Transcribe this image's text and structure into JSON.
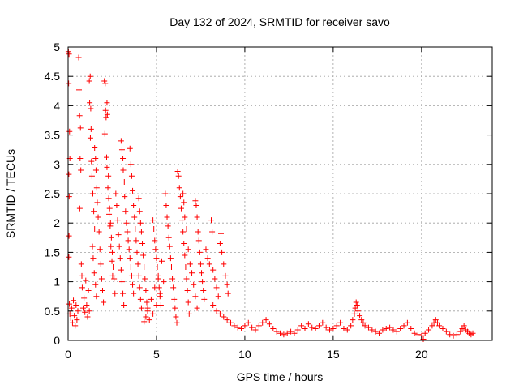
{
  "colors": {
    "series": "#ff0000",
    "axis": "#000000",
    "grid": "#a0a0a0",
    "background": "#ffffff"
  },
  "chart_data": {
    "type": "scatter",
    "title": "Day 132 of 2024, SRMTID for receiver savo",
    "xlabel": "GPS time / hours",
    "ylabel": "SRMTID / TECUs",
    "xlim": [
      0,
      24
    ],
    "ylim": [
      0,
      5
    ],
    "xticks": [
      0,
      5,
      10,
      15,
      20
    ],
    "yticks": [
      0,
      0.5,
      1,
      1.5,
      2,
      2.5,
      3,
      3.5,
      4,
      4.5,
      5
    ],
    "grid": true,
    "marker": "plus",
    "series": [
      {
        "name": "SRMTID",
        "points": [
          [
            0.02,
            4.92
          ],
          [
            0.05,
            4.88
          ],
          [
            0.03,
            4.38
          ],
          [
            0.08,
            3.56
          ],
          [
            0.04,
            2.83
          ],
          [
            0.1,
            3.1
          ],
          [
            0.06,
            2.45
          ],
          [
            0.05,
            1.78
          ],
          [
            0.04,
            1.42
          ],
          [
            0.07,
            0.62
          ],
          [
            0.1,
            0.45
          ],
          [
            0.15,
            0.38
          ],
          [
            0.2,
            0.55
          ],
          [
            0.25,
            0.3
          ],
          [
            0.3,
            0.68
          ],
          [
            0.35,
            0.42
          ],
          [
            0.4,
            0.25
          ],
          [
            0.45,
            0.6
          ],
          [
            0.5,
            0.35
          ],
          [
            0.55,
            0.5
          ],
          [
            0.6,
            4.82
          ],
          [
            0.62,
            4.27
          ],
          [
            0.65,
            3.83
          ],
          [
            0.7,
            3.62
          ],
          [
            0.68,
            3.1
          ],
          [
            0.72,
            2.9
          ],
          [
            0.66,
            2.25
          ],
          [
            0.75,
            1.3
          ],
          [
            0.78,
            1.1
          ],
          [
            0.8,
            0.9
          ],
          [
            0.85,
            0.55
          ],
          [
            0.9,
            0.72
          ],
          [
            0.95,
            0.48
          ],
          [
            1.0,
            1.02
          ],
          [
            1.05,
            0.6
          ],
          [
            1.1,
            0.4
          ],
          [
            1.15,
            0.85
          ],
          [
            1.2,
            0.5
          ],
          [
            1.2,
            4.42
          ],
          [
            1.25,
            4.5
          ],
          [
            1.22,
            4.05
          ],
          [
            1.28,
            3.95
          ],
          [
            1.3,
            3.6
          ],
          [
            1.26,
            3.45
          ],
          [
            1.32,
            3.05
          ],
          [
            1.35,
            2.8
          ],
          [
            1.4,
            2.5
          ],
          [
            1.45,
            2.2
          ],
          [
            1.5,
            1.9
          ],
          [
            1.38,
            1.6
          ],
          [
            1.42,
            1.4
          ],
          [
            1.48,
            1.15
          ],
          [
            1.55,
            0.95
          ],
          [
            1.6,
            0.75
          ],
          [
            1.5,
            3.28
          ],
          [
            1.55,
            3.1
          ],
          [
            1.58,
            2.9
          ],
          [
            1.62,
            2.6
          ],
          [
            1.65,
            2.35
          ],
          [
            1.7,
            2.1
          ],
          [
            1.75,
            1.85
          ],
          [
            1.8,
            1.55
          ],
          [
            1.85,
            1.3
          ],
          [
            1.9,
            1.05
          ],
          [
            1.95,
            0.85
          ],
          [
            2.0,
            0.65
          ],
          [
            2.05,
            4.42
          ],
          [
            2.1,
            4.38
          ],
          [
            2.12,
            3.92
          ],
          [
            2.15,
            3.8
          ],
          [
            2.08,
            3.52
          ],
          [
            2.18,
            3.12
          ],
          [
            2.2,
            2.95
          ],
          [
            2.25,
            2.6
          ],
          [
            2.3,
            2.42
          ],
          [
            2.35,
            2.25
          ],
          [
            2.4,
            2.0
          ],
          [
            2.45,
            1.75
          ],
          [
            2.5,
            1.5
          ],
          [
            2.55,
            1.25
          ],
          [
            2.6,
            1.05
          ],
          [
            2.65,
            0.8
          ],
          [
            2.2,
            4.05
          ],
          [
            2.22,
            3.85
          ],
          [
            2.28,
            2.8
          ],
          [
            2.32,
            2.15
          ],
          [
            2.38,
            1.95
          ],
          [
            2.42,
            1.6
          ],
          [
            2.48,
            1.35
          ],
          [
            2.52,
            1.1
          ],
          [
            2.7,
            2.5
          ],
          [
            2.75,
            2.3
          ],
          [
            2.8,
            2.05
          ],
          [
            2.85,
            1.8
          ],
          [
            2.9,
            1.6
          ],
          [
            2.95,
            1.4
          ],
          [
            3.0,
            1.2
          ],
          [
            3.05,
            1.0
          ],
          [
            3.1,
            0.8
          ],
          [
            3.15,
            0.6
          ],
          [
            3.0,
            3.4
          ],
          [
            3.05,
            3.25
          ],
          [
            3.1,
            3.1
          ],
          [
            3.12,
            2.9
          ],
          [
            3.18,
            2.7
          ],
          [
            3.2,
            2.45
          ],
          [
            3.25,
            2.2
          ],
          [
            3.3,
            2.0
          ],
          [
            3.35,
            1.85
          ],
          [
            3.4,
            1.7
          ],
          [
            3.45,
            1.55
          ],
          [
            3.5,
            1.4
          ],
          [
            3.55,
            1.25
          ],
          [
            3.6,
            1.1
          ],
          [
            3.65,
            0.95
          ],
          [
            3.7,
            0.8
          ],
          [
            3.5,
            3.27
          ],
          [
            3.55,
            3.0
          ],
          [
            3.6,
            2.8
          ],
          [
            3.65,
            2.55
          ],
          [
            3.7,
            2.3
          ],
          [
            3.75,
            2.1
          ],
          [
            3.8,
            1.9
          ],
          [
            3.85,
            1.7
          ],
          [
            3.9,
            1.5
          ],
          [
            3.95,
            1.3
          ],
          [
            4.0,
            1.1
          ],
          [
            4.05,
            0.9
          ],
          [
            4.1,
            0.7
          ],
          [
            4.15,
            0.55
          ],
          [
            4.0,
            2.42
          ],
          [
            4.05,
            2.2
          ],
          [
            4.1,
            2.0
          ],
          [
            4.15,
            1.85
          ],
          [
            4.2,
            1.65
          ],
          [
            4.25,
            1.45
          ],
          [
            4.3,
            1.25
          ],
          [
            4.35,
            1.05
          ],
          [
            4.4,
            0.85
          ],
          [
            4.45,
            0.65
          ],
          [
            4.5,
            0.5
          ],
          [
            4.3,
            0.32
          ],
          [
            4.4,
            0.4
          ],
          [
            4.5,
            0.55
          ],
          [
            4.6,
            0.35
          ],
          [
            4.7,
            0.7
          ],
          [
            4.8,
            0.45
          ],
          [
            4.9,
            0.9
          ],
          [
            5.0,
            0.6
          ],
          [
            5.1,
            1.1
          ],
          [
            5.2,
            0.8
          ],
          [
            5.3,
            1.35
          ],
          [
            5.4,
            1.0
          ],
          [
            4.8,
            2.05
          ],
          [
            4.85,
            1.9
          ],
          [
            4.9,
            1.7
          ],
          [
            4.95,
            1.55
          ],
          [
            5.0,
            1.4
          ],
          [
            5.05,
            1.25
          ],
          [
            5.1,
            1.05
          ],
          [
            5.15,
            0.9
          ],
          [
            5.2,
            0.75
          ],
          [
            5.25,
            0.6
          ],
          [
            5.5,
            2.5
          ],
          [
            5.55,
            2.3
          ],
          [
            5.6,
            2.1
          ],
          [
            5.65,
            1.95
          ],
          [
            5.7,
            1.75
          ],
          [
            5.75,
            1.6
          ],
          [
            5.8,
            1.4
          ],
          [
            5.85,
            1.25
          ],
          [
            5.9,
            1.05
          ],
          [
            5.95,
            0.9
          ],
          [
            6.0,
            0.7
          ],
          [
            6.05,
            0.55
          ],
          [
            6.1,
            0.4
          ],
          [
            6.15,
            0.3
          ],
          [
            6.2,
            2.88
          ],
          [
            6.25,
            2.8
          ],
          [
            6.3,
            2.6
          ],
          [
            6.35,
            2.45
          ],
          [
            6.4,
            2.25
          ],
          [
            6.45,
            2.05
          ],
          [
            6.5,
            1.85
          ],
          [
            6.55,
            1.65
          ],
          [
            6.6,
            1.45
          ],
          [
            6.65,
            1.25
          ],
          [
            6.7,
            1.05
          ],
          [
            6.75,
            0.85
          ],
          [
            6.8,
            0.65
          ],
          [
            6.85,
            0.45
          ],
          [
            6.5,
            2.5
          ],
          [
            6.55,
            2.35
          ],
          [
            6.6,
            2.1
          ],
          [
            6.7,
            1.9
          ],
          [
            6.8,
            1.55
          ],
          [
            6.9,
            1.3
          ],
          [
            7.0,
            1.15
          ],
          [
            7.1,
            0.95
          ],
          [
            7.2,
            0.75
          ],
          [
            7.3,
            0.55
          ],
          [
            7.2,
            2.38
          ],
          [
            7.25,
            2.3
          ],
          [
            7.3,
            2.1
          ],
          [
            7.35,
            1.85
          ],
          [
            7.4,
            1.7
          ],
          [
            7.45,
            1.5
          ],
          [
            7.5,
            1.3
          ],
          [
            7.55,
            1.15
          ],
          [
            7.6,
            1.0
          ],
          [
            7.65,
            0.85
          ],
          [
            7.7,
            0.7
          ],
          [
            7.8,
            1.55
          ],
          [
            7.9,
            1.4
          ],
          [
            8.0,
            1.3
          ],
          [
            8.1,
            2.05
          ],
          [
            8.15,
            1.85
          ],
          [
            8.2,
            1.2
          ],
          [
            8.3,
            1.05
          ],
          [
            8.4,
            0.9
          ],
          [
            8.5,
            0.75
          ],
          [
            8.6,
            1.65
          ],
          [
            8.65,
            1.82
          ],
          [
            8.7,
            1.5
          ],
          [
            8.8,
            1.3
          ],
          [
            8.9,
            1.1
          ],
          [
            9.0,
            0.95
          ],
          [
            9.05,
            0.8
          ],
          [
            8.2,
            0.6
          ],
          [
            8.4,
            0.5
          ],
          [
            8.6,
            0.45
          ],
          [
            8.8,
            0.4
          ],
          [
            9.0,
            0.35
          ],
          [
            9.2,
            0.3
          ],
          [
            9.4,
            0.25
          ],
          [
            9.6,
            0.22
          ],
          [
            9.8,
            0.2
          ],
          [
            10.0,
            0.25
          ],
          [
            10.2,
            0.3
          ],
          [
            10.4,
            0.22
          ],
          [
            10.6,
            0.18
          ],
          [
            10.8,
            0.25
          ],
          [
            11.0,
            0.3
          ],
          [
            11.2,
            0.35
          ],
          [
            11.4,
            0.28
          ],
          [
            11.6,
            0.2
          ],
          [
            11.8,
            0.15
          ],
          [
            12.0,
            0.12
          ],
          [
            12.2,
            0.1
          ],
          [
            12.4,
            0.12
          ],
          [
            12.6,
            0.15
          ],
          [
            12.8,
            0.12
          ],
          [
            13.0,
            0.18
          ],
          [
            13.2,
            0.25
          ],
          [
            13.4,
            0.2
          ],
          [
            13.6,
            0.28
          ],
          [
            13.8,
            0.22
          ],
          [
            14.0,
            0.2
          ],
          [
            14.2,
            0.25
          ],
          [
            14.4,
            0.3
          ],
          [
            14.6,
            0.22
          ],
          [
            14.8,
            0.18
          ],
          [
            15.0,
            0.2
          ],
          [
            15.2,
            0.25
          ],
          [
            15.4,
            0.3
          ],
          [
            15.6,
            0.2
          ],
          [
            15.8,
            0.18
          ],
          [
            16.0,
            0.25
          ],
          [
            16.1,
            0.35
          ],
          [
            16.2,
            0.45
          ],
          [
            16.25,
            0.55
          ],
          [
            16.3,
            0.65
          ],
          [
            16.35,
            0.6
          ],
          [
            16.4,
            0.5
          ],
          [
            16.5,
            0.42
          ],
          [
            16.6,
            0.35
          ],
          [
            16.7,
            0.3
          ],
          [
            16.8,
            0.25
          ],
          [
            17.0,
            0.22
          ],
          [
            17.2,
            0.18
          ],
          [
            17.4,
            0.15
          ],
          [
            17.6,
            0.12
          ],
          [
            17.8,
            0.18
          ],
          [
            18.0,
            0.2
          ],
          [
            18.2,
            0.22
          ],
          [
            18.4,
            0.18
          ],
          [
            18.6,
            0.15
          ],
          [
            18.8,
            0.2
          ],
          [
            19.0,
            0.25
          ],
          [
            19.2,
            0.3
          ],
          [
            19.4,
            0.2
          ],
          [
            19.6,
            0.12
          ],
          [
            19.8,
            0.1
          ],
          [
            20.0,
            0.08
          ],
          [
            20.1,
            0.02
          ],
          [
            20.2,
            0.12
          ],
          [
            20.4,
            0.18
          ],
          [
            20.6,
            0.25
          ],
          [
            20.7,
            0.3
          ],
          [
            20.8,
            0.35
          ],
          [
            20.9,
            0.3
          ],
          [
            21.0,
            0.25
          ],
          [
            21.2,
            0.2
          ],
          [
            21.4,
            0.15
          ],
          [
            21.6,
            0.1
          ],
          [
            21.8,
            0.08
          ],
          [
            22.0,
            0.1
          ],
          [
            22.2,
            0.15
          ],
          [
            22.3,
            0.2
          ],
          [
            22.4,
            0.25
          ],
          [
            22.5,
            0.18
          ],
          [
            22.6,
            0.15
          ],
          [
            22.7,
            0.12
          ],
          [
            22.8,
            0.1
          ],
          [
            22.9,
            0.12
          ]
        ]
      }
    ]
  }
}
